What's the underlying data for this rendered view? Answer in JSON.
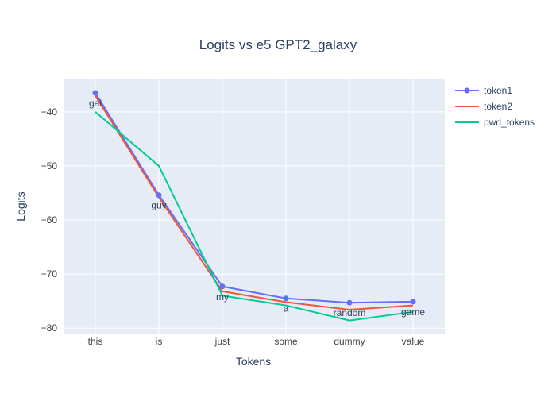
{
  "chart_data": {
    "type": "line",
    "title": "Logits vs e5 GPT2_galaxy",
    "xlabel": "Tokens",
    "ylabel": "Logits",
    "categories": [
      "this",
      "is",
      "just",
      "some",
      "dummy",
      "value"
    ],
    "ylim": [
      -81,
      -34
    ],
    "yticks": [
      -40,
      -50,
      -60,
      -70,
      -80
    ],
    "ytick_labels": [
      "−40",
      "−50",
      "−60",
      "−70",
      "−80"
    ],
    "grid": true,
    "legend_position": "top-right",
    "series": [
      {
        "name": "token1",
        "values": [
          -36.5,
          -55.4,
          -72.3,
          -74.5,
          -75.3,
          -75.1
        ],
        "color": "#636efa",
        "markers": true,
        "text_labels": [
          "gal",
          "guy",
          "my",
          "a",
          "random",
          "game"
        ]
      },
      {
        "name": "token2",
        "values": [
          -37.0,
          -55.8,
          -73.2,
          -75.2,
          -76.6,
          -75.8
        ],
        "color": "#ef553b",
        "markers": false
      },
      {
        "name": "pwd_tokens",
        "values": [
          -40.0,
          -50.0,
          -74.0,
          -75.8,
          -78.6,
          -77.0
        ],
        "color": "#00cc96",
        "markers": false
      }
    ]
  },
  "colors": {
    "plot_background": "#e5ecf6",
    "gridline": "#ffffff",
    "text": "#2a3f5f",
    "tick_text": "#444444"
  }
}
